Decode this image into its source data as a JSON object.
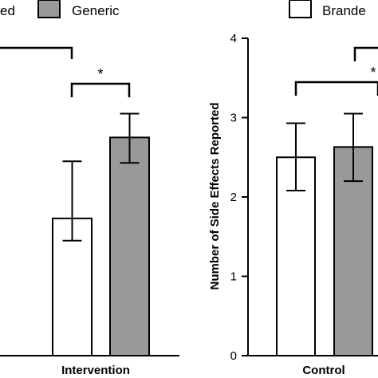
{
  "legend": {
    "items": [
      {
        "label": "ed",
        "color": "#ffffff"
      },
      {
        "label": "Generic",
        "color": "#999999"
      },
      {
        "label": "Brande",
        "color": "#ffffff"
      }
    ]
  },
  "chart_data": [
    {
      "type": "bar",
      "categories": [
        "Intervention"
      ],
      "series": [
        {
          "values": [
            1.73
          ],
          "err_low": [
            1.45
          ],
          "err_high": [
            2.45
          ],
          "color": "#ffffff"
        },
        {
          "values": [
            2.75
          ],
          "err_low": [
            2.43
          ],
          "err_high": [
            3.05
          ],
          "color": "#999999"
        }
      ],
      "significance": [
        {
          "label": "*"
        }
      ],
      "ylim": [
        0,
        4
      ]
    },
    {
      "type": "bar",
      "categories": [
        "Control"
      ],
      "series": [
        {
          "values": [
            2.5
          ],
          "err_low": [
            2.08
          ],
          "err_high": [
            2.93
          ],
          "color": "#ffffff"
        },
        {
          "values": [
            2.63
          ],
          "err_low": [
            2.2
          ],
          "err_high": [
            3.05
          ],
          "color": "#999999"
        }
      ],
      "ylabel": "Number of Side Effects Reported",
      "yticks": [
        "0",
        "1",
        "2",
        "3",
        "4"
      ],
      "ylim": [
        0,
        4
      ],
      "significance": [
        {
          "label": "*"
        }
      ]
    }
  ]
}
